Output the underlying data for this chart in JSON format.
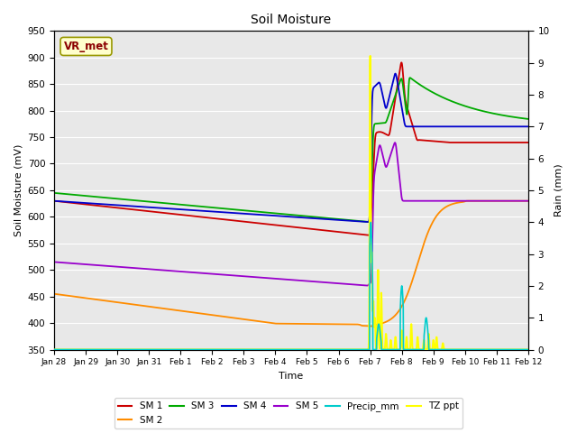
{
  "title": "Soil Moisture",
  "xlabel": "Time",
  "ylabel_left": "Soil Moisture (mV)",
  "ylabel_right": "Rain (mm)",
  "ylim_left": [
    350,
    950
  ],
  "ylim_right": [
    0.0,
    10.0
  ],
  "yticks_left": [
    350,
    400,
    450,
    500,
    550,
    600,
    650,
    700,
    750,
    800,
    850,
    900,
    950
  ],
  "yticks_right": [
    0.0,
    1.0,
    2.0,
    3.0,
    4.0,
    5.0,
    6.0,
    7.0,
    8.0,
    9.0,
    10.0
  ],
  "annotation_text": "VR_met",
  "annotation_color": "#8B0000",
  "annotation_bg": "#FFFFCC",
  "annotation_edge": "#999900",
  "bg_color": "#E8E8E8",
  "colors": {
    "SM1": "#CC0000",
    "SM2": "#FF8C00",
    "SM3": "#00AA00",
    "SM4": "#0000CC",
    "SM5": "#9900CC",
    "Precip_mm": "#00CCCC",
    "TZ_ppt": "#FFFF00"
  },
  "xtick_labels": [
    "Jan 28",
    "Jan 29",
    "Jan 30",
    "Jan 31",
    "Feb 1",
    "Feb 2",
    "Feb 3",
    "Feb 4",
    "Feb 5",
    "Feb 6",
    "Feb 7",
    "Feb 8",
    "Feb 9",
    "Feb 10",
    "Feb 11",
    "Feb 12"
  ],
  "n_points": 2000
}
